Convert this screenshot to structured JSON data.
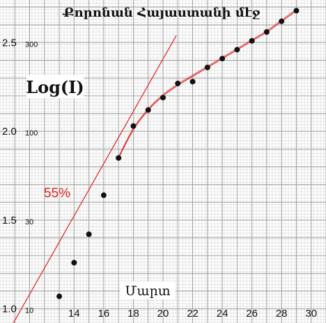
{
  "chart_data": {
    "type": "scatter",
    "title": "Քորոնան Հայաստանի մէջ",
    "xlabel": "Մարտ",
    "ylabel": "Log(I)",
    "xlim": [
      9,
      31
    ],
    "ylim": [
      0.92,
      2.74
    ],
    "x_ticks": [
      14,
      16,
      18,
      20,
      22,
      24,
      26,
      28,
      30
    ],
    "y_ticks": [
      {
        "value": 1.0,
        "label": "1.0",
        "count_label": "10"
      },
      {
        "value": 1.5,
        "label": "1.5",
        "count_label": "30"
      },
      {
        "value": 2.0,
        "label": "2.0",
        "count_label": "100"
      },
      {
        "value": 2.5,
        "label": "2.5",
        "count_label": "300"
      }
    ],
    "grid": true,
    "series": [
      {
        "x": [
          13,
          14,
          15,
          16,
          17,
          18,
          19,
          20,
          21,
          22,
          23,
          24,
          25,
          26,
          27,
          28,
          29
        ],
        "y": [
          1.07,
          1.26,
          1.42,
          1.64,
          1.85,
          2.03,
          2.12,
          2.19,
          2.27,
          2.28,
          2.36,
          2.41,
          2.46,
          2.51,
          2.56,
          2.62,
          2.68
        ],
        "color": "#111111"
      }
    ],
    "trend_line": {
      "x": [
        9.9,
        20.9
      ],
      "y": [
        0.92,
        2.54
      ],
      "color": "#e02020"
    },
    "fit_curve": {
      "x": [
        17,
        18,
        19,
        20,
        21,
        22,
        23,
        24,
        25,
        26,
        27,
        28,
        29
      ],
      "y": [
        1.85,
        2.01,
        2.12,
        2.2,
        2.26,
        2.31,
        2.36,
        2.41,
        2.46,
        2.51,
        2.56,
        2.62,
        2.68
      ],
      "color": "#e02020"
    },
    "annotations": [
      {
        "text": "55%",
        "color": "#e02020"
      }
    ]
  }
}
